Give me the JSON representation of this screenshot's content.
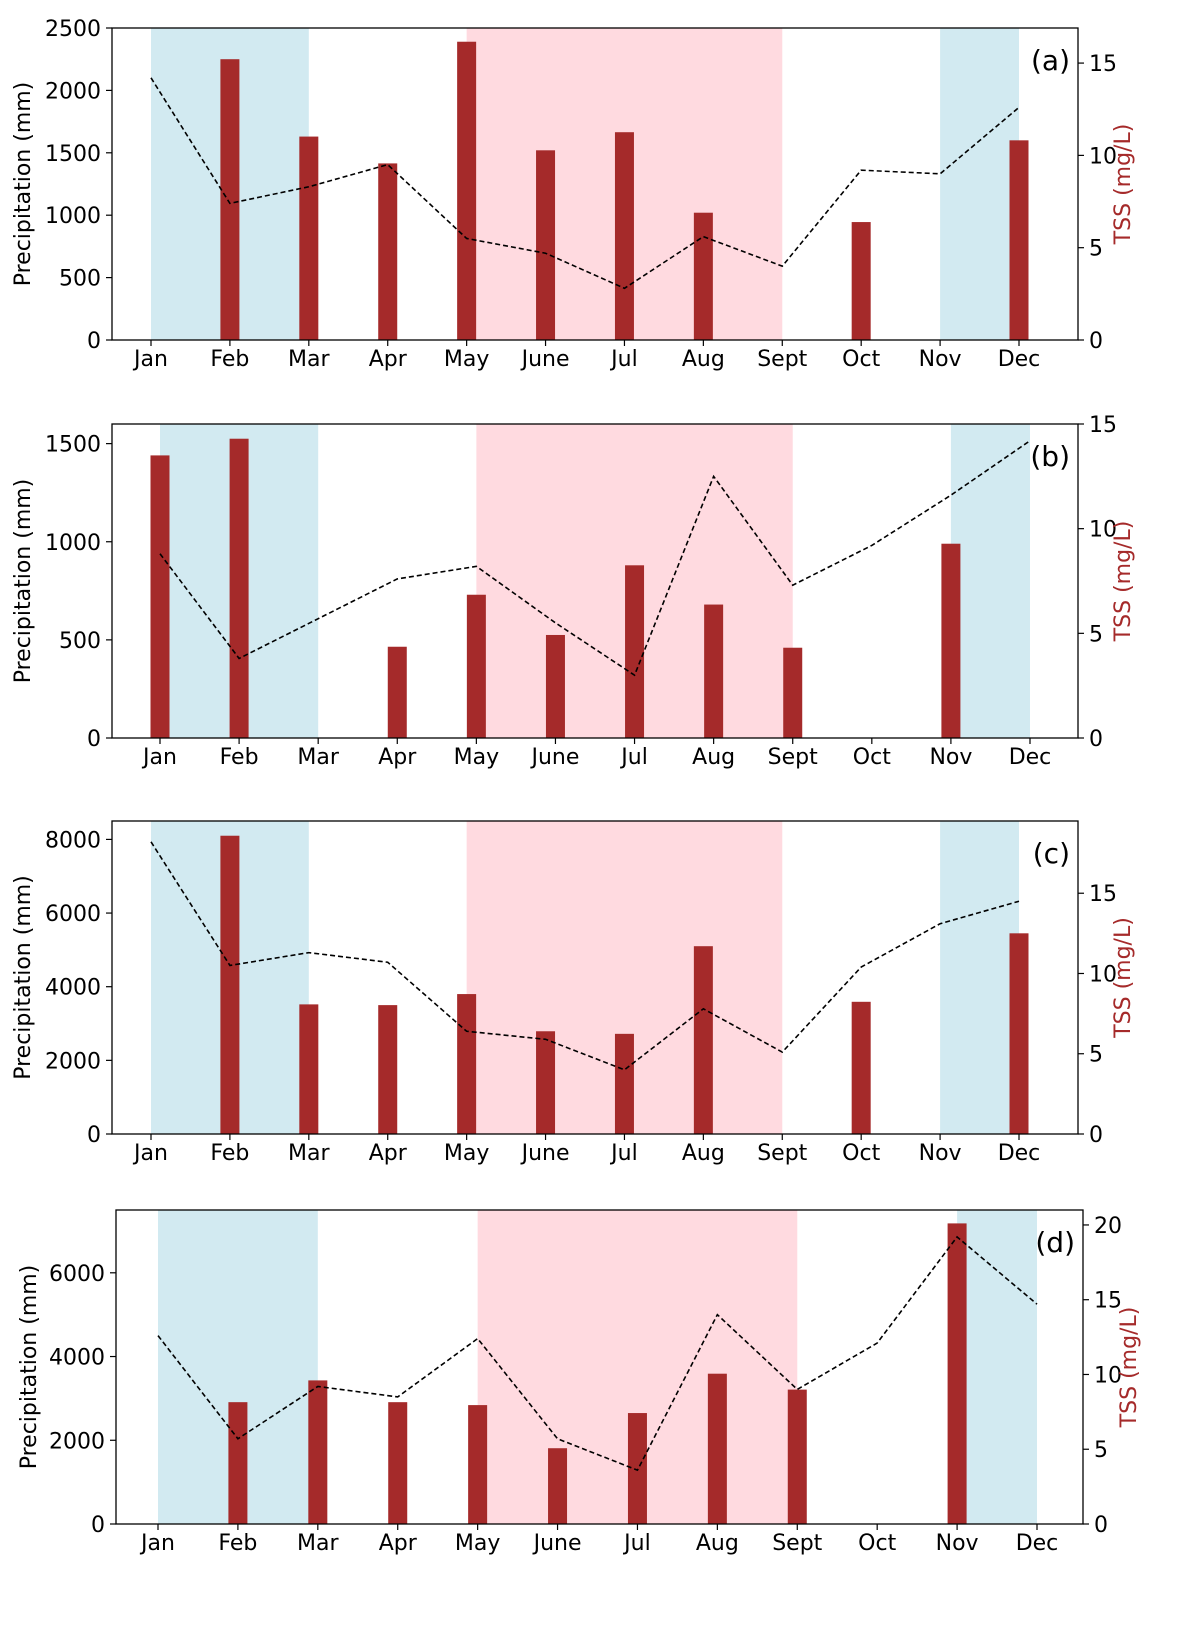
{
  "colors": {
    "bar": "#a52a2a",
    "line": "#000000",
    "winter_band": "#add8e6",
    "summer_band": "#ffb6c1",
    "right_axis_label": "#a52a2a"
  },
  "chart_data": [
    {
      "type": "bar",
      "panel_label": "(a)",
      "categories": [
        "Jan",
        "Feb",
        "Mar",
        "Apr",
        "May",
        "June",
        "Jul",
        "Aug",
        "Sept",
        "Oct",
        "Nov",
        "Dec"
      ],
      "ylabel": "Precipitation (mm)",
      "y2label": "TSS (mg/L)",
      "ylim": [
        0,
        2500
      ],
      "yticks": [
        0,
        500,
        1000,
        1500,
        2000,
        2500
      ],
      "y2lim": [
        0,
        16.9
      ],
      "y2ticks": [
        0,
        5,
        10,
        15
      ],
      "precipitation_bars": [
        {
          "month": "Feb",
          "value": 2250
        },
        {
          "month": "Mar",
          "value": 1630
        },
        {
          "month": "Apr",
          "value": 1415
        },
        {
          "month": "May",
          "value": 2390
        },
        {
          "month": "June",
          "value": 1520
        },
        {
          "month": "Jul",
          "value": 1665
        },
        {
          "month": "Aug",
          "value": 1020
        },
        {
          "month": "Oct",
          "value": 945
        },
        {
          "month": "Dec",
          "value": 1600
        }
      ],
      "tss_line": [
        14.2,
        7.4,
        8.3,
        9.5,
        5.5,
        4.7,
        2.8,
        5.6,
        4.0,
        9.2,
        9.0,
        12.6
      ],
      "shaded_periods": [
        {
          "season": "winter",
          "from": "Jan",
          "to": "Mar"
        },
        {
          "season": "summer",
          "from": "May",
          "to": "Sept"
        },
        {
          "season": "winter",
          "from": "Nov",
          "to": "Dec"
        }
      ]
    },
    {
      "type": "bar",
      "panel_label": "(b)",
      "categories": [
        "Jan",
        "Feb",
        "Mar",
        "Apr",
        "May",
        "June",
        "Jul",
        "Aug",
        "Sept",
        "Oct",
        "Nov",
        "Dec"
      ],
      "ylabel": "Precipitation (mm)",
      "y2label": "TSS (mg/L)",
      "ylim": [
        0,
        1600
      ],
      "yticks": [
        0,
        500,
        1000,
        1500
      ],
      "y2lim": [
        0,
        15
      ],
      "y2ticks": [
        0,
        5,
        10,
        15
      ],
      "precipitation_bars": [
        {
          "month": "Jan",
          "value": 1440
        },
        {
          "month": "Feb",
          "value": 1525
        },
        {
          "month": "Apr",
          "value": 465
        },
        {
          "month": "May",
          "value": 730
        },
        {
          "month": "June",
          "value": 525
        },
        {
          "month": "Jul",
          "value": 880
        },
        {
          "month": "Aug",
          "value": 680
        },
        {
          "month": "Sept",
          "value": 460
        },
        {
          "month": "Nov",
          "value": 990
        }
      ],
      "tss_line": [
        8.8,
        3.8,
        5.7,
        7.6,
        8.2,
        5.5,
        3.0,
        12.5,
        7.3,
        9.2,
        11.6,
        14.2
      ],
      "shaded_periods": [
        {
          "season": "winter",
          "from": "Jan",
          "to": "Mar"
        },
        {
          "season": "summer",
          "from": "May",
          "to": "Sept"
        },
        {
          "season": "winter",
          "from": "Nov",
          "to": "Dec"
        }
      ]
    },
    {
      "type": "bar",
      "panel_label": "(c)",
      "categories": [
        "Jan",
        "Feb",
        "Mar",
        "Apr",
        "May",
        "June",
        "Jul",
        "Aug",
        "Sept",
        "Oct",
        "Nov",
        "Dec"
      ],
      "ylabel": "Precipitation (mm)",
      "y2label": "TSS (mg/L)",
      "ylim": [
        0,
        8500
      ],
      "yticks": [
        0,
        2000,
        4000,
        6000,
        8000
      ],
      "y2lim": [
        0,
        19.5
      ],
      "y2ticks": [
        0,
        5,
        10,
        15
      ],
      "precipitation_bars": [
        {
          "month": "Feb",
          "value": 8100
        },
        {
          "month": "Mar",
          "value": 3520
        },
        {
          "month": "Apr",
          "value": 3500
        },
        {
          "month": "May",
          "value": 3800
        },
        {
          "month": "June",
          "value": 2790
        },
        {
          "month": "Jul",
          "value": 2720
        },
        {
          "month": "Aug",
          "value": 5100
        },
        {
          "month": "Oct",
          "value": 3590
        },
        {
          "month": "Dec",
          "value": 5450
        }
      ],
      "tss_line": [
        18.2,
        10.5,
        11.3,
        10.7,
        6.4,
        5.9,
        4.0,
        7.8,
        5.1,
        10.4,
        13.1,
        14.5
      ],
      "shaded_periods": [
        {
          "season": "winter",
          "from": "Jan",
          "to": "Mar"
        },
        {
          "season": "summer",
          "from": "May",
          "to": "Sept"
        },
        {
          "season": "winter",
          "from": "Nov",
          "to": "Dec"
        }
      ]
    },
    {
      "type": "bar",
      "panel_label": "(d)",
      "categories": [
        "Jan",
        "Feb",
        "Mar",
        "Apr",
        "May",
        "June",
        "Jul",
        "Aug",
        "Sept",
        "Oct",
        "Nov",
        "Dec"
      ],
      "ylabel": "Precipitation (mm)",
      "y2label": "TSS (mg/L)",
      "ylim": [
        0,
        7500
      ],
      "yticks": [
        0,
        2000,
        4000,
        6000
      ],
      "y2lim": [
        0,
        21
      ],
      "y2ticks": [
        0,
        5,
        10,
        15,
        20
      ],
      "precipitation_bars": [
        {
          "month": "Feb",
          "value": 2910
        },
        {
          "month": "Mar",
          "value": 3430
        },
        {
          "month": "Apr",
          "value": 2910
        },
        {
          "month": "May",
          "value": 2840
        },
        {
          "month": "June",
          "value": 1810
        },
        {
          "month": "Jul",
          "value": 2650
        },
        {
          "month": "Aug",
          "value": 3590
        },
        {
          "month": "Sept",
          "value": 3210
        },
        {
          "month": "Nov",
          "value": 7180
        }
      ],
      "tss_line": [
        12.6,
        5.7,
        9.2,
        8.5,
        12.4,
        5.7,
        3.6,
        14.0,
        9.0,
        12.1,
        19.2,
        14.7
      ],
      "shaded_periods": [
        {
          "season": "winter",
          "from": "Jan",
          "to": "Mar"
        },
        {
          "season": "summer",
          "from": "May",
          "to": "Sept"
        },
        {
          "season": "winter",
          "from": "Nov",
          "to": "Dec"
        }
      ]
    }
  ]
}
